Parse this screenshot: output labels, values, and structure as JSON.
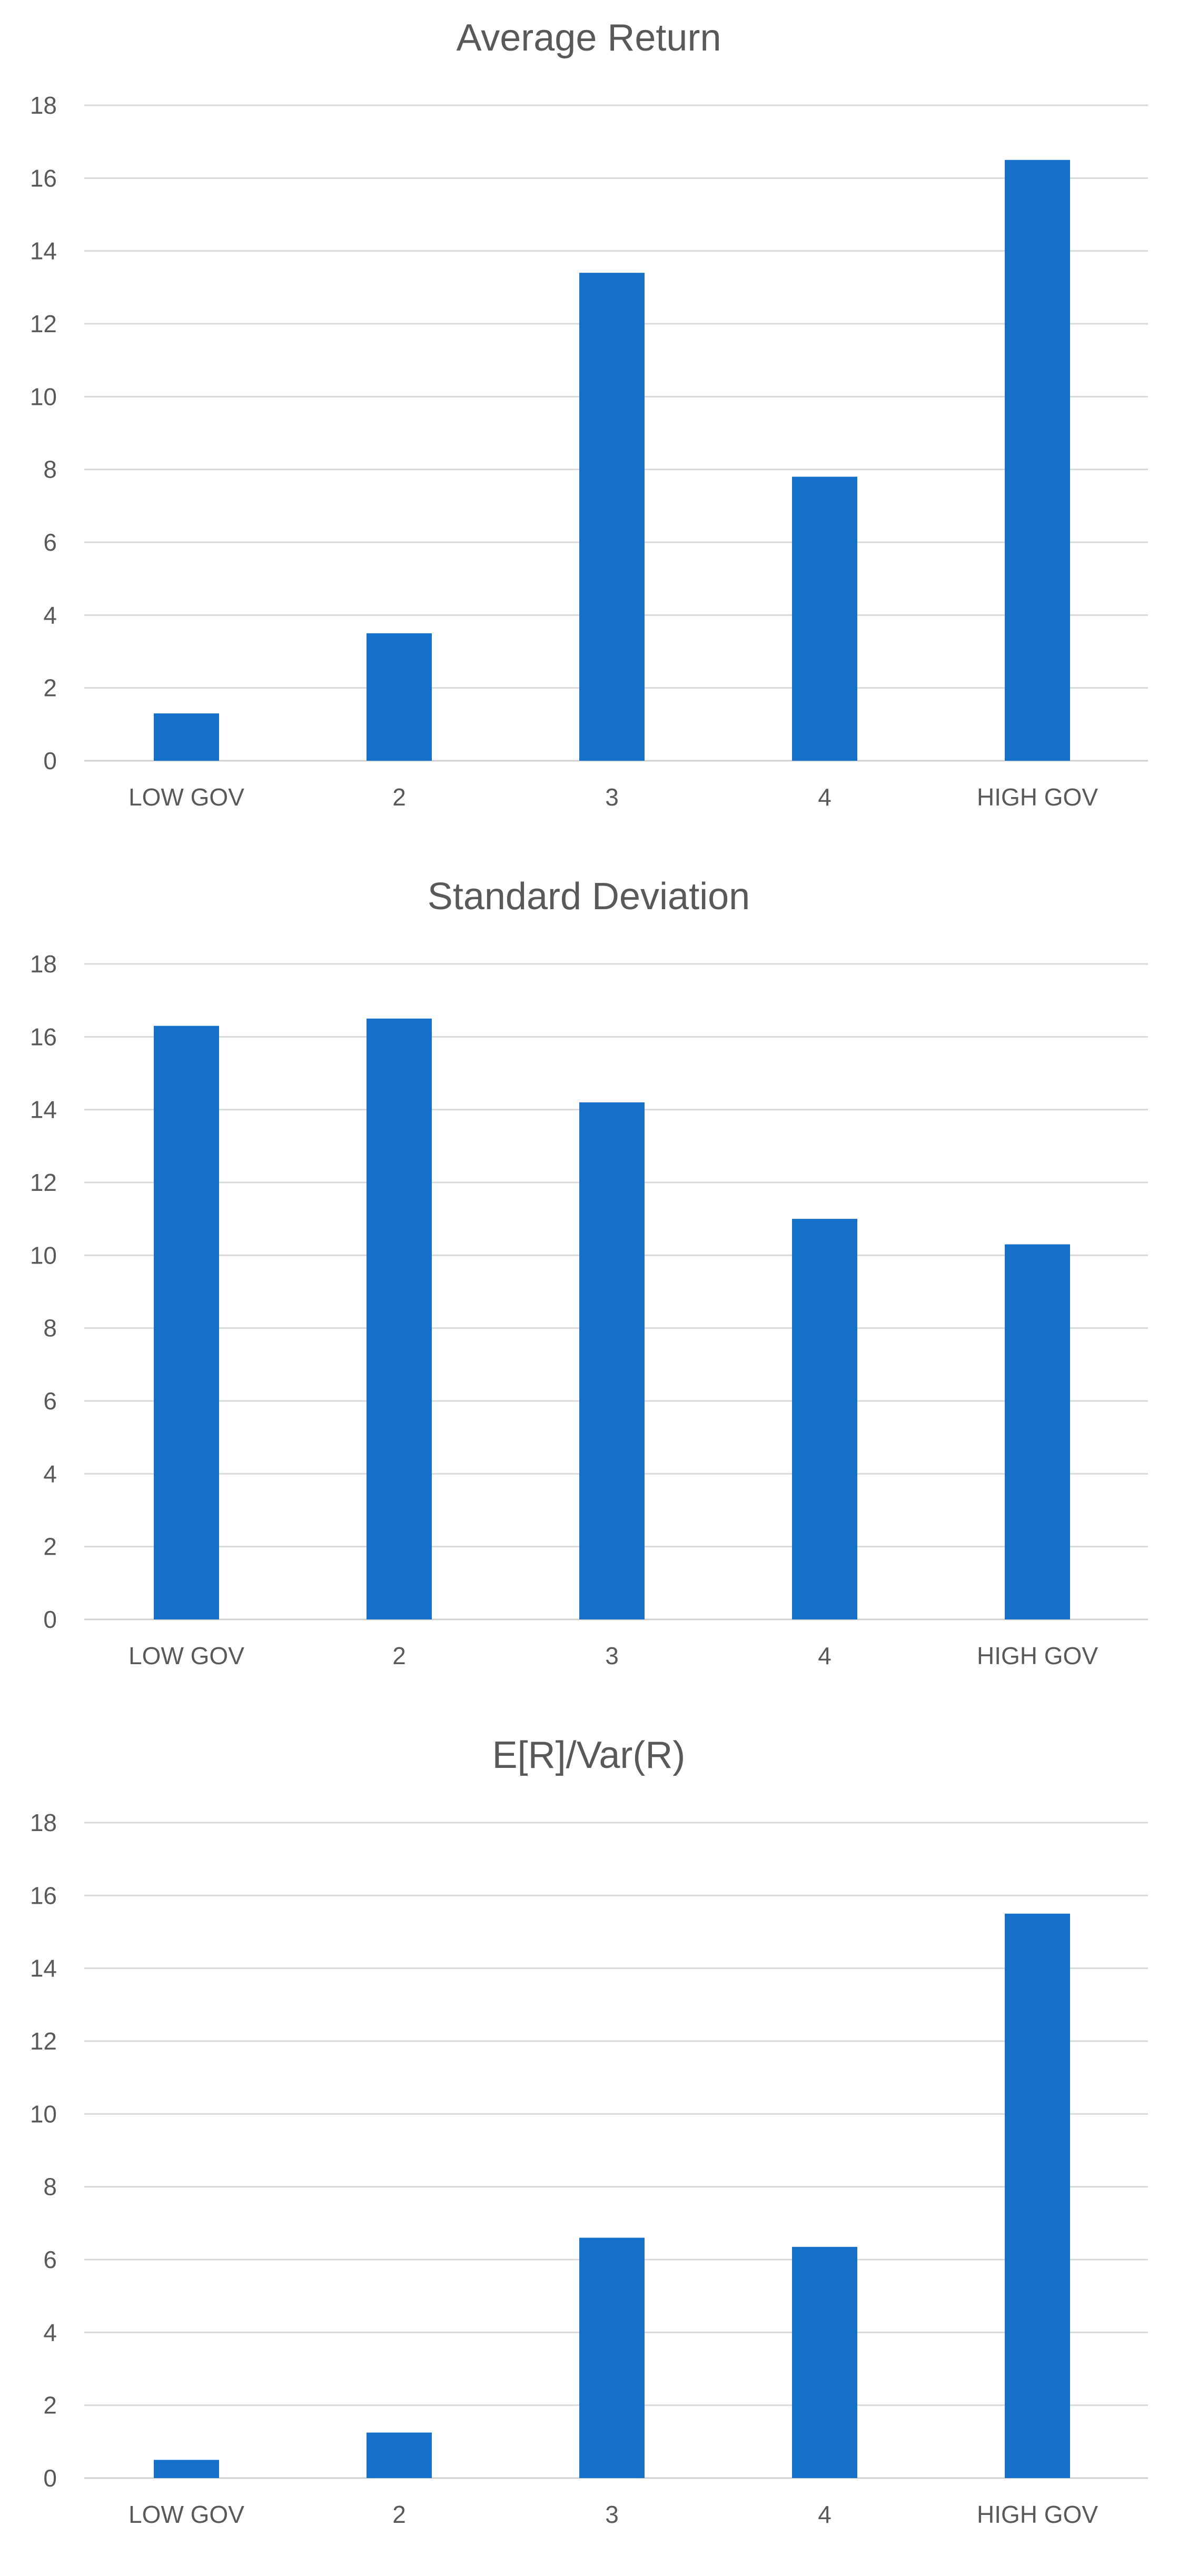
{
  "chart_data": [
    {
      "type": "bar",
      "title": "Average Return",
      "categories": [
        "LOW GOV",
        "2",
        "3",
        "4",
        "HIGH GOV"
      ],
      "values": [
        1.3,
        3.5,
        13.4,
        7.8,
        16.5
      ],
      "ylim": [
        0,
        18
      ],
      "yticks": [
        "0",
        "2",
        "4",
        "6",
        "8",
        "10",
        "12",
        "14",
        "16",
        "18"
      ],
      "grid": true,
      "xlabel": "",
      "ylabel": "",
      "bar_color": "#1570C9"
    },
    {
      "type": "bar",
      "title": "Standard Deviation",
      "categories": [
        "LOW GOV",
        "2",
        "3",
        "4",
        "HIGH GOV"
      ],
      "values": [
        16.3,
        16.5,
        14.2,
        11.0,
        10.3
      ],
      "ylim": [
        0,
        18
      ],
      "yticks": [
        "0",
        "2",
        "4",
        "6",
        "8",
        "10",
        "12",
        "14",
        "16",
        "18"
      ],
      "grid": true,
      "xlabel": "",
      "ylabel": "",
      "bar_color": "#1570C9"
    },
    {
      "type": "bar",
      "title": "E[R]/Var(R)",
      "categories": [
        "LOW GOV",
        "2",
        "3",
        "4",
        "HIGH GOV"
      ],
      "values": [
        0.5,
        1.25,
        6.6,
        6.35,
        15.5
      ],
      "ylim": [
        0,
        18
      ],
      "yticks": [
        "0",
        "2",
        "4",
        "6",
        "8",
        "10",
        "12",
        "14",
        "16",
        "18"
      ],
      "grid": true,
      "xlabel": "",
      "ylabel": "",
      "bar_color": "#1570C9"
    }
  ]
}
